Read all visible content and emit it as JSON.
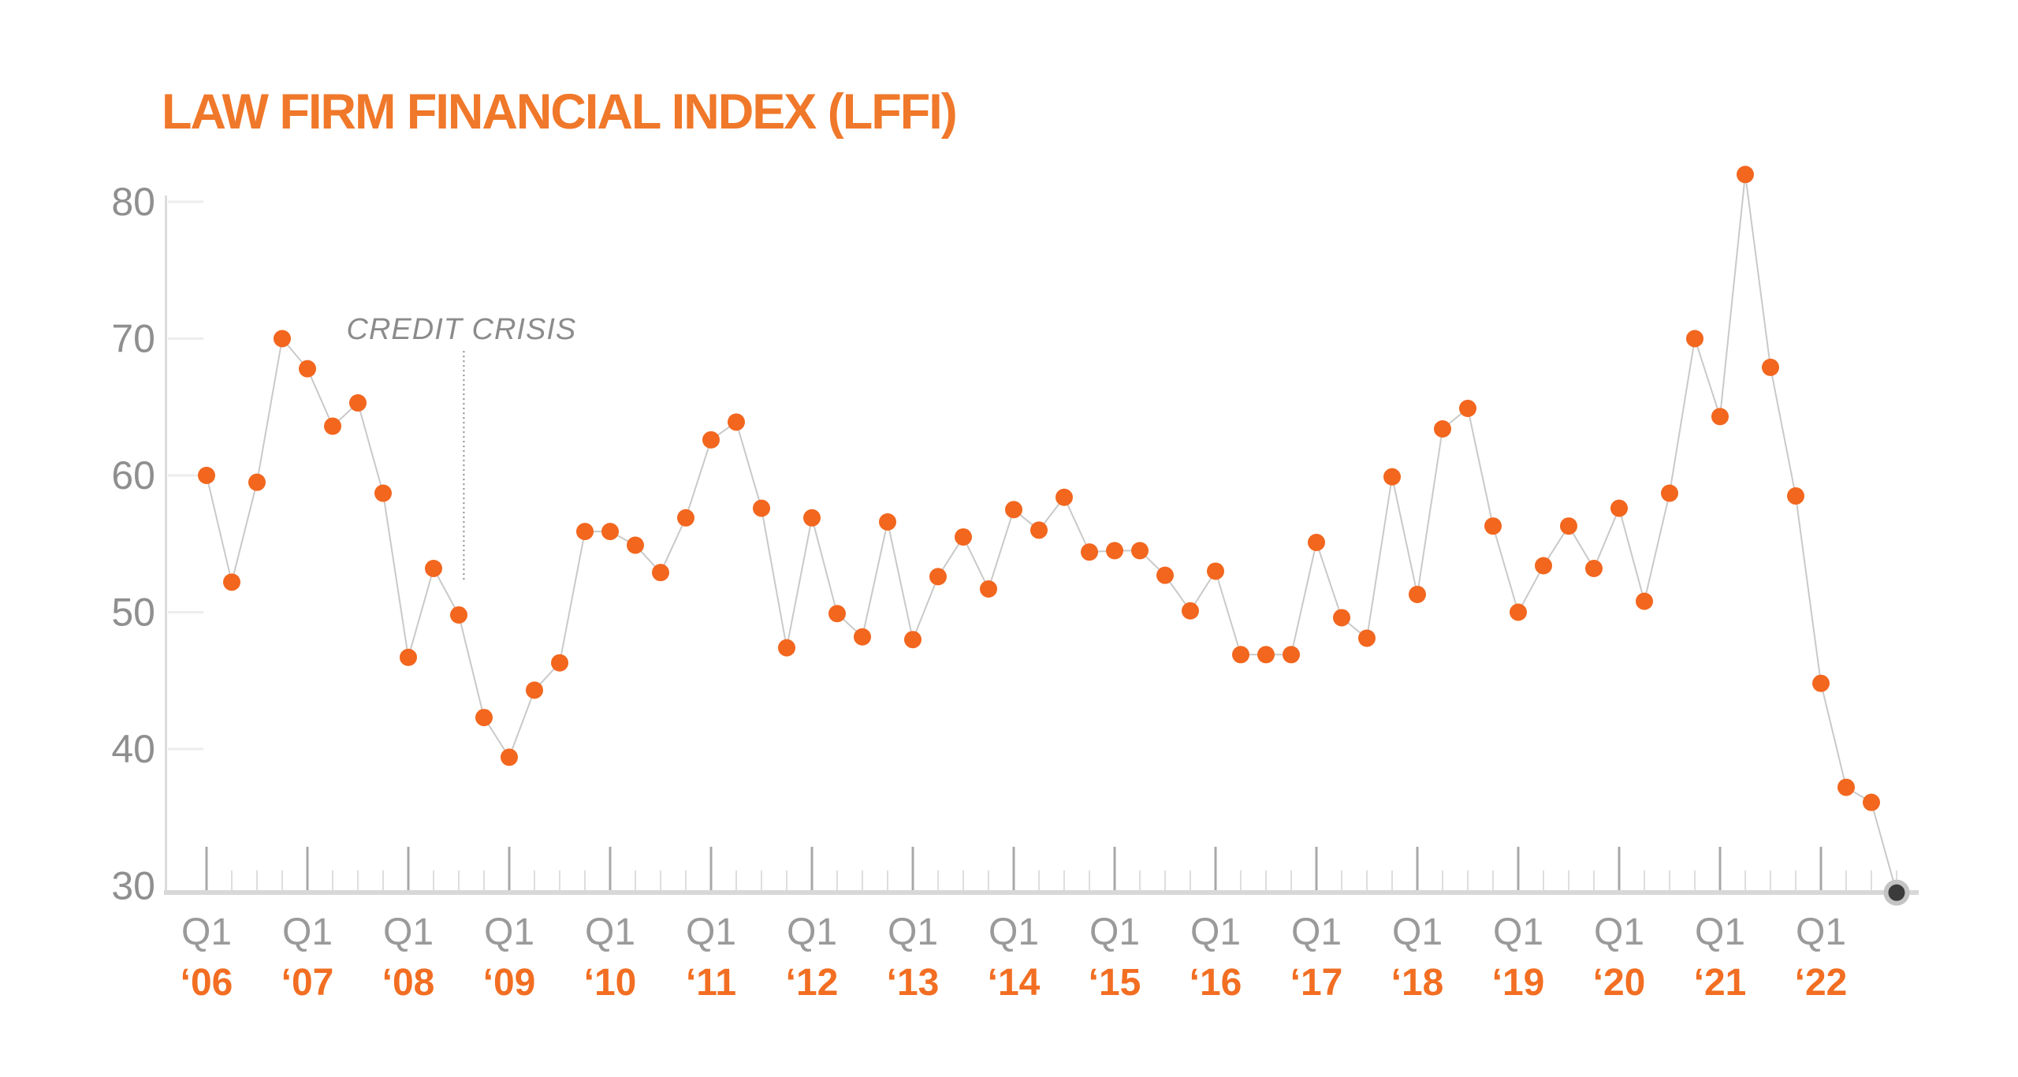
{
  "title": "LAW FIRM FINANCIAL INDEX (LFFI)",
  "annotation_label": "CREDIT CRISIS",
  "colors": {
    "title_orange": "#F0782A",
    "year_orange": "#F26E22",
    "dot_orange": "#F2661E",
    "q1_gray": "#9A9A9A",
    "y_label_gray": "#8F8F8F",
    "annotation_gray": "#8B8B8B",
    "axis_line": "#DCDCDC",
    "baseline": "#D8D8D8",
    "major_tick": "#A8A8A8",
    "minor_tick": "#DEDEDE",
    "inner_y_tick": "#EDEDED",
    "connector_line": "#C9C9C9",
    "final_dot_ring": "#C4C4C4",
    "final_dot_core": "#3B3B3B",
    "background": "#FFFFFF"
  },
  "chart_data": {
    "type": "line",
    "title": "LAW FIRM FINANCIAL INDEX (LFFI)",
    "frequency": "quarterly",
    "x_start": "Q1 2006",
    "x_end": "Q4 2022",
    "ylim": [
      30,
      80
    ],
    "y_ticks": [
      30,
      40,
      50,
      60,
      70,
      80
    ],
    "grid": "off",
    "legend": "none",
    "marker_style": "filled-circle",
    "line_style": "thin-gray-connector",
    "x_axis": {
      "quarter_label": "Q1",
      "year_labels": [
        "‘06",
        "‘07",
        "‘08",
        "‘09",
        "‘10",
        "‘11",
        "‘12",
        "‘13",
        "‘14",
        "‘15",
        "‘16",
        "‘17",
        "‘18",
        "‘19",
        "‘20",
        "‘21",
        "‘22"
      ],
      "minor_ticks": "every quarter",
      "major_ticks": "every Q1"
    },
    "series": [
      {
        "name": "LFFI",
        "values": [
          60.0,
          52.2,
          59.5,
          70.0,
          67.8,
          63.6,
          65.3,
          58.7,
          46.7,
          53.2,
          49.8,
          42.3,
          39.4,
          44.3,
          46.3,
          55.9,
          55.9,
          54.9,
          52.9,
          56.9,
          62.6,
          63.9,
          57.6,
          47.4,
          56.9,
          49.9,
          48.2,
          56.6,
          48.0,
          52.6,
          55.5,
          51.7,
          57.5,
          56.0,
          58.4,
          54.4,
          54.5,
          54.5,
          52.7,
          50.1,
          53.0,
          46.9,
          46.9,
          46.9,
          55.1,
          49.6,
          48.1,
          59.9,
          51.3,
          63.4,
          64.9,
          56.3,
          50.0,
          53.4,
          56.3,
          53.2,
          57.6,
          50.8,
          58.7,
          70.0,
          64.3,
          82.0,
          67.9,
          58.5,
          44.8,
          37.2,
          36.1,
          29.5
        ]
      }
    ],
    "annotation": {
      "text": "CREDIT CRISIS",
      "x_quarter_index": 10.2,
      "line_top_value": 69.1,
      "line_bottom_value": 52.2
    },
    "final_point": {
      "label": "Q4 2022",
      "value": 29.5,
      "style": "dark-core-with-gray-ring"
    }
  }
}
